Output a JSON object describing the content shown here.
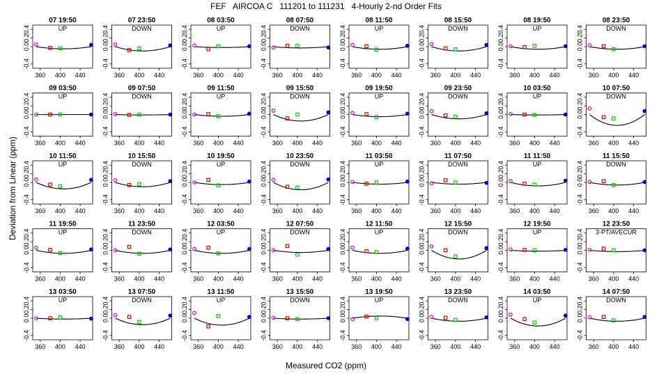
{
  "chart_data": {
    "type": "scatter",
    "title": "FEF   AIRCOA C   111201 to 111231   4-Hourly 2-nd Order Fits",
    "xlabel": "Measured CO2 (ppm)",
    "ylabel": "Deviation from Linear (ppm)",
    "xlim": [
      345,
      465
    ],
    "ylim": [
      -0.5,
      0.5
    ],
    "xticks": [
      360,
      400,
      440
    ],
    "yticks": [
      -0.4,
      0.0,
      0.2,
      0.4
    ],
    "ytick_labels": [
      "-0.4",
      "0.0",
      "0.2",
      "0.4"
    ],
    "grid": false,
    "panels": [
      {
        "title": "07 19:50",
        "label": "UP",
        "curve": 0.05,
        "points": [
          0.05,
          -0.03,
          -0.04,
          0.04
        ]
      },
      {
        "title": "07 23:50",
        "label": "DOWN",
        "curve": 0.1,
        "points": [
          0.05,
          -0.08,
          -0.04,
          0.03
        ]
      },
      {
        "title": "08 03:50",
        "label": "UP",
        "curve": 0.02,
        "points": [
          0.03,
          -0.06,
          0.01,
          0.01
        ]
      },
      {
        "title": "08 07:50",
        "label": "DOWN",
        "curve": 0.03,
        "points": [
          -0.02,
          0.02,
          0.02,
          -0.02
        ]
      },
      {
        "title": "08 11:50",
        "label": "UP",
        "curve": 0.06,
        "points": [
          0.04,
          0.01,
          -0.07,
          0.02
        ]
      },
      {
        "title": "08 15:50",
        "label": "DOWN",
        "curve": 0.1,
        "points": [
          0.06,
          -0.04,
          -0.06,
          0.04
        ]
      },
      {
        "title": "08 19:50",
        "label": "UP",
        "curve": 0.06,
        "points": [
          0.01,
          -0.01,
          0.02,
          0.01
        ]
      },
      {
        "title": "08 23:50",
        "label": "DOWN",
        "curve": 0.06,
        "points": [
          0.03,
          0.01,
          -0.06,
          0.01
        ]
      },
      {
        "title": "09 03:50",
        "label": "UP",
        "curve": 0.0,
        "points": [
          0.0,
          0.0,
          0.0,
          0.0
        ]
      },
      {
        "title": "09 07:50",
        "label": "DOWN",
        "curve": 0.01,
        "points": [
          0.01,
          -0.01,
          0.0,
          0.0
        ]
      },
      {
        "title": "09 11:50",
        "label": "UP",
        "curve": 0.04,
        "points": [
          0.0,
          0.01,
          -0.04,
          0.02
        ]
      },
      {
        "title": "09 15:50",
        "label": "DOWN",
        "curve": 0.15,
        "points": [
          0.09,
          -0.09,
          0.0,
          0.05
        ]
      },
      {
        "title": "09 19:50",
        "label": "UP",
        "curve": 0.05,
        "points": [
          0.04,
          0.01,
          -0.06,
          0.02
        ]
      },
      {
        "title": "09 23:50",
        "label": "DOWN",
        "curve": 0.1,
        "points": [
          0.08,
          -0.02,
          -0.05,
          0.03
        ]
      },
      {
        "title": "10 03:50",
        "label": "UP",
        "curve": 0.01,
        "points": [
          0.01,
          0.0,
          -0.01,
          0.0
        ]
      },
      {
        "title": "10 07:50",
        "label": "DOWN",
        "curve": 0.25,
        "points": [
          0.14,
          -0.06,
          -0.09,
          0.08
        ]
      },
      {
        "title": "10 11:50",
        "label": "UP",
        "curve": 0.15,
        "points": [
          0.07,
          -0.05,
          -0.09,
          0.06
        ]
      },
      {
        "title": "10 15:50",
        "label": "DOWN",
        "curve": 0.1,
        "points": [
          0.05,
          -0.06,
          -0.04,
          0.03
        ]
      },
      {
        "title": "10 19:50",
        "label": "UP",
        "curve": 0.05,
        "points": [
          0.0,
          0.06,
          -0.07,
          0.02
        ]
      },
      {
        "title": "10 23:50",
        "label": "DOWN",
        "curve": 0.17,
        "points": [
          0.06,
          -0.1,
          -0.12,
          0.07
        ]
      },
      {
        "title": "11 03:50",
        "label": "UP",
        "curve": 0.04,
        "points": [
          0.01,
          -0.03,
          0.0,
          0.02
        ]
      },
      {
        "title": "11 07:50",
        "label": "DOWN",
        "curve": 0.04,
        "points": [
          -0.02,
          0.05,
          0.0,
          -0.01
        ]
      },
      {
        "title": "11 11:50",
        "label": "UP",
        "curve": 0.08,
        "points": [
          0.03,
          -0.03,
          -0.05,
          0.04
        ]
      },
      {
        "title": "11 15:50",
        "label": "DOWN",
        "curve": 0.06,
        "points": [
          0.01,
          0.03,
          -0.06,
          0.01
        ]
      },
      {
        "title": "11 19:50",
        "label": "UP",
        "curve": 0.07,
        "points": [
          0.06,
          0.01,
          -0.06,
          0.02
        ]
      },
      {
        "title": "11 23:50",
        "label": "DOWN",
        "curve": 0.07,
        "points": [
          0.0,
          0.08,
          -0.08,
          0.02
        ]
      },
      {
        "title": "12 03:50",
        "label": "UP",
        "curve": 0.07,
        "points": [
          0.03,
          0.06,
          -0.07,
          0.03
        ]
      },
      {
        "title": "12 07:50",
        "label": "DOWN",
        "curve": 0.05,
        "points": [
          0.0,
          0.1,
          -0.1,
          0.03
        ]
      },
      {
        "title": "12 11:50",
        "label": "UP",
        "curve": 0.07,
        "points": [
          0.06,
          -0.02,
          -0.04,
          0.04
        ]
      },
      {
        "title": "12 15:50",
        "label": "DOWN",
        "curve": 0.2,
        "points": [
          0.09,
          0.0,
          -0.14,
          0.05
        ]
      },
      {
        "title": "12 19:50",
        "label": "UP",
        "curve": 0.02,
        "points": [
          0.02,
          0.01,
          0.0,
          0.01
        ]
      },
      {
        "title": "12 23:50",
        "label": "3-PT/AVECUR",
        "curve": 0.03,
        "points": [
          0.01,
          0.04,
          0.0,
          0.0
        ]
      },
      {
        "title": "13 03:50",
        "label": "UP",
        "curve": 0.02,
        "points": [
          0.0,
          0.0,
          0.02,
          -0.01
        ]
      },
      {
        "title": "13 07:50",
        "label": "DOWN",
        "curve": 0.15,
        "points": [
          0.07,
          0.03,
          -0.09,
          0.06
        ]
      },
      {
        "title": "13 11:50",
        "label": "UP",
        "curve": 0.16,
        "points": [
          0.12,
          -0.19,
          0.05,
          0.03
        ]
      },
      {
        "title": "13 15:50",
        "label": "DOWN",
        "curve": 0.02,
        "points": [
          0.01,
          0.0,
          -0.02,
          0.0
        ]
      },
      {
        "title": "13 19:50",
        "label": "UP",
        "curve": -0.05,
        "points": [
          -0.02,
          0.04,
          0.0,
          -0.02
        ]
      },
      {
        "title": "13 23:50",
        "label": "DOWN",
        "curve": 0.07,
        "points": [
          0.03,
          0.01,
          -0.04,
          0.02
        ]
      },
      {
        "title": "14 03:50",
        "label": "UP",
        "curve": 0.18,
        "points": [
          0.08,
          -0.02,
          -0.1,
          0.06
        ]
      },
      {
        "title": "14 07:50",
        "label": "DOWN",
        "curve": 0.07,
        "points": [
          0.02,
          0.03,
          -0.05,
          0.03
        ]
      }
    ],
    "point_x": [
      352,
      380,
      400,
      462
    ],
    "point_colors": [
      "#d000d0",
      "#dd0000",
      "#00cc00",
      "#0000ee"
    ]
  }
}
